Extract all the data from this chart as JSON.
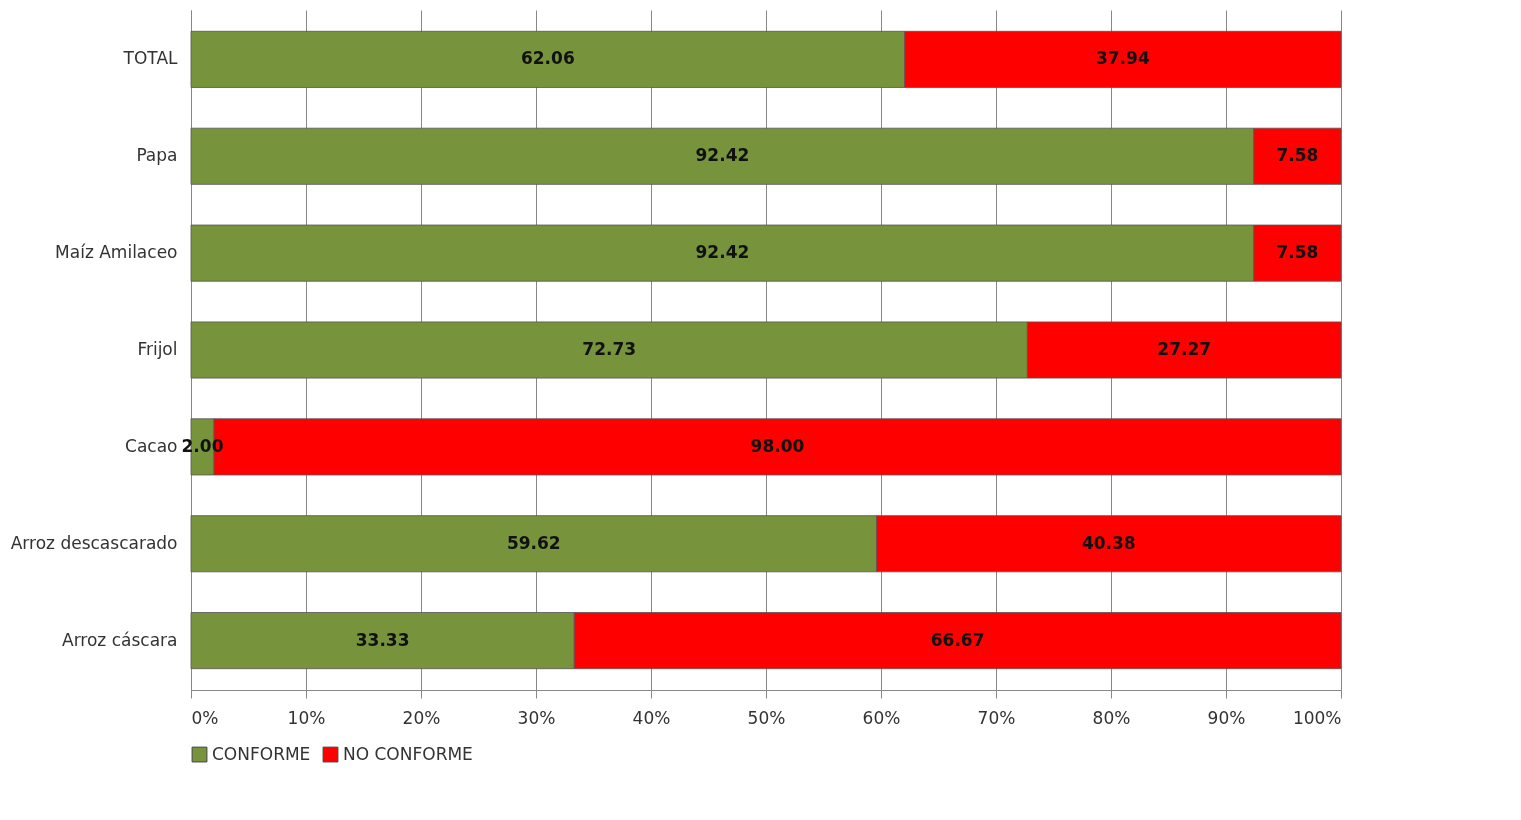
{
  "chart_data": {
    "type": "bar",
    "orientation": "horizontal",
    "stacked": true,
    "categories": [
      "TOTAL",
      "Papa",
      "Maíz Amilaceo",
      "Frijol",
      "Cacao",
      "Arroz descascarado",
      "Arroz cáscara"
    ],
    "series": [
      {
        "name": "CONFORME",
        "color": "#77933c",
        "values": [
          62.06,
          92.42,
          92.42,
          72.73,
          2.0,
          59.62,
          33.33
        ],
        "value_labels": [
          "62.06",
          "92.42",
          "92.42",
          "72.73",
          "2.00",
          "59.62",
          "33.33"
        ]
      },
      {
        "name": "NO CONFORME",
        "color": "#ff0000",
        "values": [
          37.94,
          7.58,
          7.58,
          27.27,
          98.0,
          40.38,
          66.67
        ],
        "value_labels": [
          "37.94",
          "7.58",
          "7.58",
          "27.27",
          "98.00",
          "40.38",
          "66.67"
        ]
      }
    ],
    "xlim": [
      0,
      100
    ],
    "xticks": [
      {
        "value": 0,
        "label": "0%"
      },
      {
        "value": 10,
        "label": "10%"
      },
      {
        "value": 20,
        "label": "20%"
      },
      {
        "value": 30,
        "label": "30%"
      },
      {
        "value": 40,
        "label": "40%"
      },
      {
        "value": 50,
        "label": "50%"
      },
      {
        "value": 60,
        "label": "60%"
      },
      {
        "value": 70,
        "label": "70%"
      },
      {
        "value": 80,
        "label": "80%"
      },
      {
        "value": 90,
        "label": "90%"
      },
      {
        "value": 100,
        "label": "100%"
      }
    ],
    "grid": "x",
    "legend": "bottom"
  }
}
